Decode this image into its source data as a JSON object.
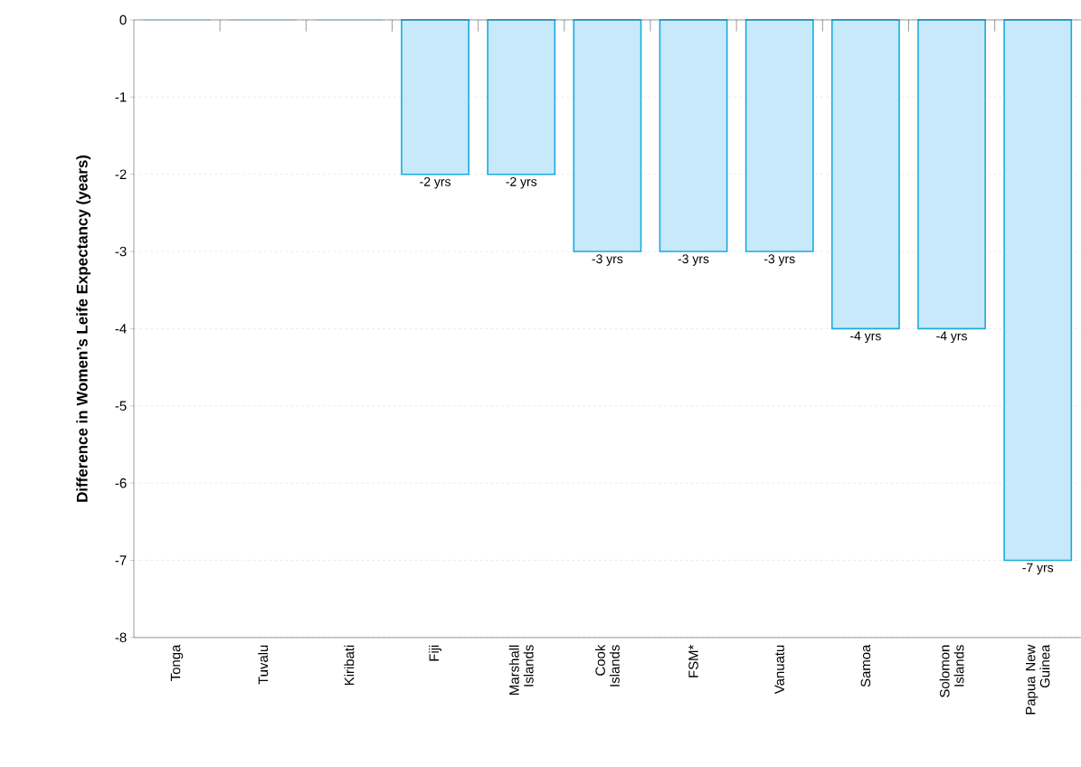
{
  "chart_data": {
    "type": "bar",
    "ylabel": "Difference in Women’s Leife Expectancy (years)",
    "categories": [
      "Tonga",
      "Tuvalu",
      "Kiribati",
      "Fiji",
      "Marshall Islands",
      "Cook Islands",
      "FSM*",
      "Vanuatu",
      "Samoa",
      "Solomon Islands",
      "Papua New Guinea"
    ],
    "values": [
      0,
      0,
      0,
      -2,
      -2,
      -3,
      -3,
      -3,
      -4,
      -4,
      -7
    ],
    "value_labels": [
      null,
      null,
      null,
      "-2 yrs",
      "-2 yrs",
      "-3 yrs",
      "-3 yrs",
      "-3 yrs",
      "-4 yrs",
      "-4 yrs",
      "-7 yrs"
    ],
    "color": "#c8e9f9",
    "ylim": [
      -8,
      0
    ],
    "yticks": [
      -8,
      -7,
      -6,
      -5,
      -4,
      -3,
      -2,
      -1,
      0
    ],
    "grid": "y"
  }
}
